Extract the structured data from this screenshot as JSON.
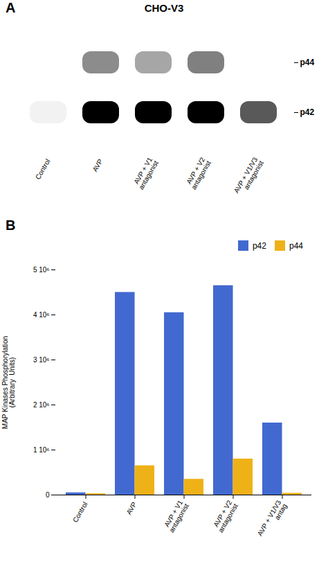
{
  "chart_data": [
    {
      "type": "blot",
      "title": "CHO-V3",
      "annotations": [
        "A"
      ],
      "categories": [
        "Control",
        "AVP",
        "AVP + V1\nantagonist",
        "AVP + V2\nantagonist",
        "AVP + V1/V3\nantagonist"
      ],
      "series": [
        {
          "name": "p44",
          "values": [
            0.0,
            0.45,
            0.35,
            0.5,
            0.0
          ]
        },
        {
          "name": "p42",
          "values": [
            0.05,
            1.0,
            1.0,
            1.0,
            0.65
          ]
        }
      ]
    },
    {
      "type": "bar",
      "annotations": [
        "B"
      ],
      "categories": [
        "Control",
        "AVP",
        "AVP + V1\nantagonist",
        "AVP + V2\nantagonist",
        "AVP + V1/V3\nantag"
      ],
      "series": [
        {
          "name": "p42",
          "values": [
            50000,
            4500000,
            4050000,
            4650000,
            1600000
          ]
        },
        {
          "name": "p44",
          "values": [
            30000,
            650000,
            350000,
            800000,
            40000
          ]
        }
      ],
      "ylabel": "MAP Kinases Phosphorylation\n(Arbitrary  Units)",
      "ylim": [
        0,
        5000000
      ],
      "yticks": [
        0,
        {
          "value": 1000000,
          "label": "1 10⁶"
        },
        {
          "value": 2000000,
          "label": "2 10⁶"
        },
        {
          "value": 3000000,
          "label": "3 10⁶"
        },
        {
          "value": 4000000,
          "label": "4 10⁶"
        },
        {
          "value": 5000000,
          "label": "5 10⁶"
        }
      ],
      "legend": "upper right"
    }
  ]
}
